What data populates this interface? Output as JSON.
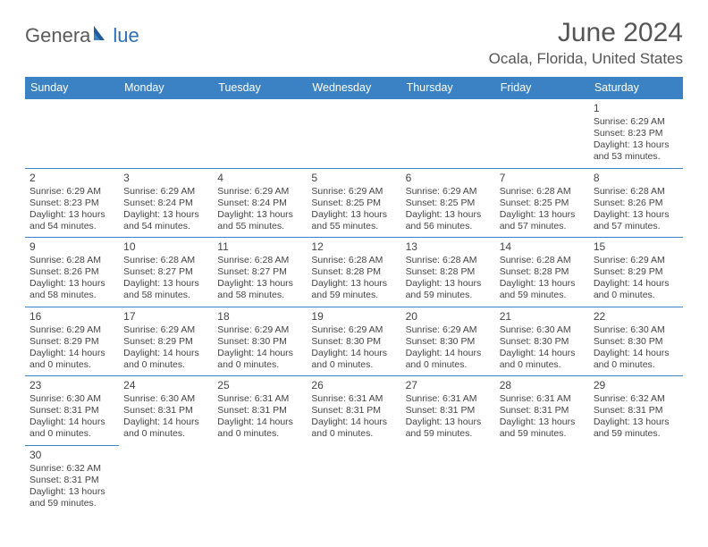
{
  "logo": {
    "textA": "Genera",
    "textB": "lue"
  },
  "title": "June 2024",
  "location": "Ocala, Florida, United States",
  "colors": {
    "headerBg": "#3b82c4",
    "headerText": "#ffffff",
    "border": "#3b82c4",
    "logoGray": "#5a5a5a",
    "logoBlue": "#2d6fb3",
    "bodyText": "#444444",
    "titleColor": "#555555"
  },
  "dayHeaders": [
    "Sunday",
    "Monday",
    "Tuesday",
    "Wednesday",
    "Thursday",
    "Friday",
    "Saturday"
  ],
  "weeks": [
    [
      null,
      null,
      null,
      null,
      null,
      null,
      {
        "n": "1",
        "sr": "Sunrise: 6:29 AM",
        "ss": "Sunset: 8:23 PM",
        "d1": "Daylight: 13 hours",
        "d2": "and 53 minutes."
      }
    ],
    [
      {
        "n": "2",
        "sr": "Sunrise: 6:29 AM",
        "ss": "Sunset: 8:23 PM",
        "d1": "Daylight: 13 hours",
        "d2": "and 54 minutes."
      },
      {
        "n": "3",
        "sr": "Sunrise: 6:29 AM",
        "ss": "Sunset: 8:24 PM",
        "d1": "Daylight: 13 hours",
        "d2": "and 54 minutes."
      },
      {
        "n": "4",
        "sr": "Sunrise: 6:29 AM",
        "ss": "Sunset: 8:24 PM",
        "d1": "Daylight: 13 hours",
        "d2": "and 55 minutes."
      },
      {
        "n": "5",
        "sr": "Sunrise: 6:29 AM",
        "ss": "Sunset: 8:25 PM",
        "d1": "Daylight: 13 hours",
        "d2": "and 55 minutes."
      },
      {
        "n": "6",
        "sr": "Sunrise: 6:29 AM",
        "ss": "Sunset: 8:25 PM",
        "d1": "Daylight: 13 hours",
        "d2": "and 56 minutes."
      },
      {
        "n": "7",
        "sr": "Sunrise: 6:28 AM",
        "ss": "Sunset: 8:25 PM",
        "d1": "Daylight: 13 hours",
        "d2": "and 57 minutes."
      },
      {
        "n": "8",
        "sr": "Sunrise: 6:28 AM",
        "ss": "Sunset: 8:26 PM",
        "d1": "Daylight: 13 hours",
        "d2": "and 57 minutes."
      }
    ],
    [
      {
        "n": "9",
        "sr": "Sunrise: 6:28 AM",
        "ss": "Sunset: 8:26 PM",
        "d1": "Daylight: 13 hours",
        "d2": "and 58 minutes."
      },
      {
        "n": "10",
        "sr": "Sunrise: 6:28 AM",
        "ss": "Sunset: 8:27 PM",
        "d1": "Daylight: 13 hours",
        "d2": "and 58 minutes."
      },
      {
        "n": "11",
        "sr": "Sunrise: 6:28 AM",
        "ss": "Sunset: 8:27 PM",
        "d1": "Daylight: 13 hours",
        "d2": "and 58 minutes."
      },
      {
        "n": "12",
        "sr": "Sunrise: 6:28 AM",
        "ss": "Sunset: 8:28 PM",
        "d1": "Daylight: 13 hours",
        "d2": "and 59 minutes."
      },
      {
        "n": "13",
        "sr": "Sunrise: 6:28 AM",
        "ss": "Sunset: 8:28 PM",
        "d1": "Daylight: 13 hours",
        "d2": "and 59 minutes."
      },
      {
        "n": "14",
        "sr": "Sunrise: 6:28 AM",
        "ss": "Sunset: 8:28 PM",
        "d1": "Daylight: 13 hours",
        "d2": "and 59 minutes."
      },
      {
        "n": "15",
        "sr": "Sunrise: 6:29 AM",
        "ss": "Sunset: 8:29 PM",
        "d1": "Daylight: 14 hours",
        "d2": "and 0 minutes."
      }
    ],
    [
      {
        "n": "16",
        "sr": "Sunrise: 6:29 AM",
        "ss": "Sunset: 8:29 PM",
        "d1": "Daylight: 14 hours",
        "d2": "and 0 minutes."
      },
      {
        "n": "17",
        "sr": "Sunrise: 6:29 AM",
        "ss": "Sunset: 8:29 PM",
        "d1": "Daylight: 14 hours",
        "d2": "and 0 minutes."
      },
      {
        "n": "18",
        "sr": "Sunrise: 6:29 AM",
        "ss": "Sunset: 8:30 PM",
        "d1": "Daylight: 14 hours",
        "d2": "and 0 minutes."
      },
      {
        "n": "19",
        "sr": "Sunrise: 6:29 AM",
        "ss": "Sunset: 8:30 PM",
        "d1": "Daylight: 14 hours",
        "d2": "and 0 minutes."
      },
      {
        "n": "20",
        "sr": "Sunrise: 6:29 AM",
        "ss": "Sunset: 8:30 PM",
        "d1": "Daylight: 14 hours",
        "d2": "and 0 minutes."
      },
      {
        "n": "21",
        "sr": "Sunrise: 6:30 AM",
        "ss": "Sunset: 8:30 PM",
        "d1": "Daylight: 14 hours",
        "d2": "and 0 minutes."
      },
      {
        "n": "22",
        "sr": "Sunrise: 6:30 AM",
        "ss": "Sunset: 8:30 PM",
        "d1": "Daylight: 14 hours",
        "d2": "and 0 minutes."
      }
    ],
    [
      {
        "n": "23",
        "sr": "Sunrise: 6:30 AM",
        "ss": "Sunset: 8:31 PM",
        "d1": "Daylight: 14 hours",
        "d2": "and 0 minutes."
      },
      {
        "n": "24",
        "sr": "Sunrise: 6:30 AM",
        "ss": "Sunset: 8:31 PM",
        "d1": "Daylight: 14 hours",
        "d2": "and 0 minutes."
      },
      {
        "n": "25",
        "sr": "Sunrise: 6:31 AM",
        "ss": "Sunset: 8:31 PM",
        "d1": "Daylight: 14 hours",
        "d2": "and 0 minutes."
      },
      {
        "n": "26",
        "sr": "Sunrise: 6:31 AM",
        "ss": "Sunset: 8:31 PM",
        "d1": "Daylight: 14 hours",
        "d2": "and 0 minutes."
      },
      {
        "n": "27",
        "sr": "Sunrise: 6:31 AM",
        "ss": "Sunset: 8:31 PM",
        "d1": "Daylight: 13 hours",
        "d2": "and 59 minutes."
      },
      {
        "n": "28",
        "sr": "Sunrise: 6:31 AM",
        "ss": "Sunset: 8:31 PM",
        "d1": "Daylight: 13 hours",
        "d2": "and 59 minutes."
      },
      {
        "n": "29",
        "sr": "Sunrise: 6:32 AM",
        "ss": "Sunset: 8:31 PM",
        "d1": "Daylight: 13 hours",
        "d2": "and 59 minutes."
      }
    ],
    [
      {
        "n": "30",
        "sr": "Sunrise: 6:32 AM",
        "ss": "Sunset: 8:31 PM",
        "d1": "Daylight: 13 hours",
        "d2": "and 59 minutes."
      },
      null,
      null,
      null,
      null,
      null,
      null
    ]
  ]
}
